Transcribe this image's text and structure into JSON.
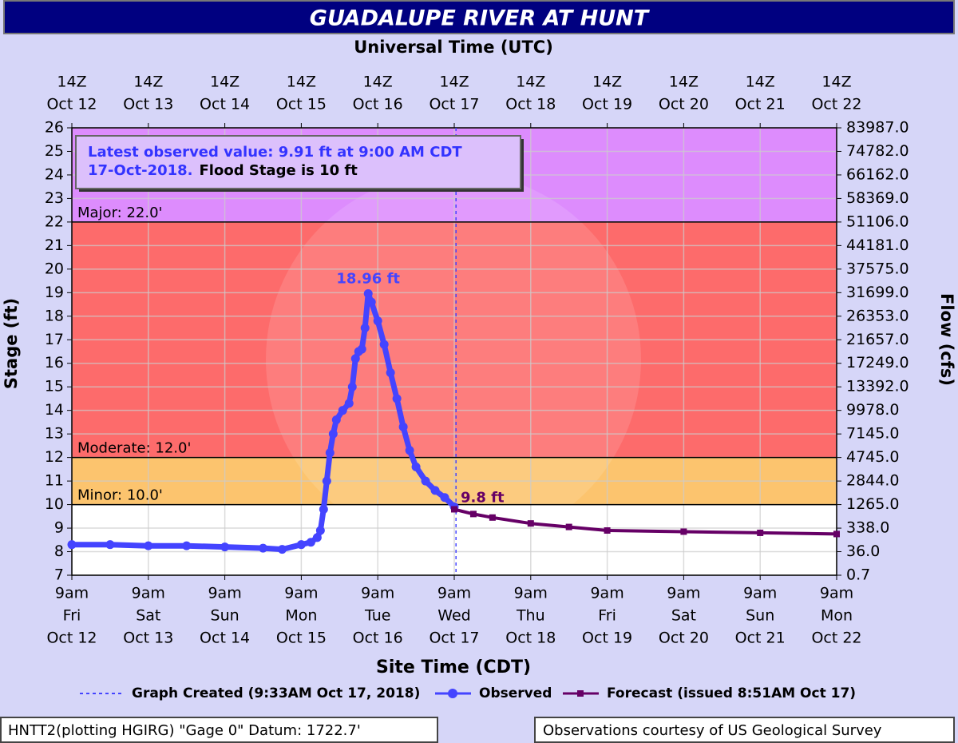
{
  "chart_data": {
    "type": "line",
    "title": "GUADALUPE RIVER AT HUNT",
    "x2_title": "Universal Time (UTC)",
    "x_title": "Site Time (CDT)",
    "y_title": "Stage (ft)",
    "y2_title": "Flow (cfs)",
    "xlim": [
      "Oct 12 9am",
      "Oct 22 9am"
    ],
    "xticks": [
      {
        "value": "Oct 12 9am",
        "label": [
          "9am",
          "Fri",
          "Oct 12"
        ]
      },
      {
        "value": "Oct 13 9am",
        "label": [
          "9am",
          "Sat",
          "Oct 13"
        ]
      },
      {
        "value": "Oct 14 9am",
        "label": [
          "9am",
          "Sun",
          "Oct 14"
        ]
      },
      {
        "value": "Oct 15 9am",
        "label": [
          "9am",
          "Mon",
          "Oct 15"
        ]
      },
      {
        "value": "Oct 16 9am",
        "label": [
          "9am",
          "Tue",
          "Oct 16"
        ]
      },
      {
        "value": "Oct 17 9am",
        "label": [
          "9am",
          "Wed",
          "Oct 17"
        ]
      },
      {
        "value": "Oct 18 9am",
        "label": [
          "9am",
          "Thu",
          "Oct 18"
        ]
      },
      {
        "value": "Oct 19 9am",
        "label": [
          "9am",
          "Fri",
          "Oct 19"
        ]
      },
      {
        "value": "Oct 20 9am",
        "label": [
          "9am",
          "Sat",
          "Oct 20"
        ]
      },
      {
        "value": "Oct 21 9am",
        "label": [
          "9am",
          "Sun",
          "Oct 21"
        ]
      },
      {
        "value": "Oct 22 9am",
        "label": [
          "9am",
          "Mon",
          "Oct 22"
        ]
      }
    ],
    "x2ticks": [
      {
        "value": "Oct 12 14Z",
        "label": [
          "14Z",
          "Oct 12"
        ]
      },
      {
        "value": "Oct 13 14Z",
        "label": [
          "14Z",
          "Oct 13"
        ]
      },
      {
        "value": "Oct 14 14Z",
        "label": [
          "14Z",
          "Oct 14"
        ]
      },
      {
        "value": "Oct 15 14Z",
        "label": [
          "14Z",
          "Oct 15"
        ]
      },
      {
        "value": "Oct 16 14Z",
        "label": [
          "14Z",
          "Oct 16"
        ]
      },
      {
        "value": "Oct 17 14Z",
        "label": [
          "14Z",
          "Oct 17"
        ]
      },
      {
        "value": "Oct 18 14Z",
        "label": [
          "14Z",
          "Oct 18"
        ]
      },
      {
        "value": "Oct 19 14Z",
        "label": [
          "14Z",
          "Oct 19"
        ]
      },
      {
        "value": "Oct 20 14Z",
        "label": [
          "14Z",
          "Oct 20"
        ]
      },
      {
        "value": "Oct 21 14Z",
        "label": [
          "14Z",
          "Oct 21"
        ]
      },
      {
        "value": "Oct 22 14Z",
        "label": [
          "14Z",
          "Oct 22"
        ]
      }
    ],
    "ylim": [
      7,
      26
    ],
    "yticks": [
      7,
      8,
      9,
      10,
      11,
      12,
      13,
      14,
      15,
      16,
      17,
      18,
      19,
      20,
      21,
      22,
      23,
      24,
      25,
      26
    ],
    "y2ticks": [
      0.7,
      {
        "value": 36,
        "label": "36.0"
      },
      {
        "value": 338,
        "label": "338.0"
      },
      {
        "value": 1265,
        "label": "1265.0"
      },
      {
        "value": 2844,
        "label": "2844.0"
      },
      {
        "value": 4745,
        "label": "4745.0"
      },
      {
        "value": 7145,
        "label": "7145.0"
      },
      {
        "value": 9978,
        "label": "9978.0"
      },
      {
        "value": 13392,
        "label": "13392.0"
      },
      {
        "value": 17249,
        "label": "17249.0"
      },
      {
        "value": 21657,
        "label": "21657.0"
      },
      {
        "value": 26353,
        "label": "26353.0"
      },
      {
        "value": 31699,
        "label": "31699.0"
      },
      {
        "value": 37575,
        "label": "37575.0"
      },
      {
        "value": 44181,
        "label": "44181.0"
      },
      {
        "value": 51106,
        "label": "51106.0"
      },
      {
        "value": 58369,
        "label": "58369.0"
      },
      {
        "value": 66162,
        "label": "66162.0"
      },
      {
        "value": 74782,
        "label": "74782.0"
      },
      {
        "value": 83987,
        "label": "83987.0"
      }
    ],
    "grid": true,
    "flood_categories": [
      {
        "label": "Minor: 10.0'",
        "stage": 10,
        "color": "#fcc46e"
      },
      {
        "label": "Moderate: 12.0'",
        "stage": 12,
        "color": "#fd6b6b"
      },
      {
        "label": "Major: 22.0'",
        "stage": 22,
        "color": "#dd8cfd"
      }
    ],
    "markers": [
      {
        "name": "Graph Created (9:33AM Oct 17, 2018)",
        "x": "Oct 17 9:33am",
        "color": "#4444ff"
      }
    ],
    "series": [
      {
        "name": "Observed",
        "color": "#4444ff",
        "marker": "circle",
        "x": [
          "Oct 12 9am",
          "Oct 12 9pm",
          "Oct 13 9am",
          "Oct 13 9pm",
          "Oct 14 9am",
          "Oct 14 9pm",
          "Oct 15 3am",
          "Oct 15 9am",
          "Oct 15 12pm",
          "Oct 15 2pm",
          "Oct 15 3pm",
          "Oct 15 4pm",
          "Oct 15 5pm",
          "Oct 15 6pm",
          "Oct 15 7pm",
          "Oct 15 8pm",
          "Oct 15 10pm",
          "Oct 16 12am",
          "Oct 16 1am",
          "Oct 16 2am",
          "Oct 16 3am",
          "Oct 16 4am",
          "Oct 16 5am",
          "Oct 16 6am",
          "Oct 16 7am",
          "Oct 16 9am",
          "Oct 16 11am",
          "Oct 16 1pm",
          "Oct 16 3pm",
          "Oct 16 5pm",
          "Oct 16 7pm",
          "Oct 16 9pm",
          "Oct 17 12am",
          "Oct 17 3am",
          "Oct 17 6am",
          "Oct 17 9am"
        ],
        "values": [
          8.3,
          8.3,
          8.25,
          8.25,
          8.2,
          8.15,
          8.1,
          8.3,
          8.4,
          8.6,
          8.9,
          9.8,
          11.0,
          12.2,
          13.0,
          13.6,
          14.0,
          14.3,
          15.0,
          16.2,
          16.5,
          16.6,
          17.5,
          18.96,
          18.6,
          17.8,
          16.8,
          15.6,
          14.5,
          13.3,
          12.3,
          11.6,
          11.0,
          10.6,
          10.3,
          9.91
        ],
        "value_labels": [
          null,
          null,
          null,
          null,
          null,
          null,
          null,
          null,
          null,
          null,
          null,
          null,
          null,
          null,
          null,
          null,
          null,
          null,
          null,
          null,
          null,
          null,
          null,
          "18.96 ft",
          null,
          null,
          null,
          null,
          null,
          null,
          null,
          null,
          null,
          null,
          null,
          null
        ]
      },
      {
        "name": "Forecast (issued 8:51AM Oct 17)",
        "color": "#660066",
        "marker": "square",
        "x": [
          "Oct 17 9am",
          "Oct 17 3pm",
          "Oct 17 9pm",
          "Oct 18 9am",
          "Oct 18 9pm",
          "Oct 19 9am",
          "Oct 20 9am",
          "Oct 21 9am",
          "Oct 22 9am"
        ],
        "values": [
          9.8,
          9.6,
          9.45,
          9.2,
          9.05,
          8.9,
          8.85,
          8.8,
          8.75
        ],
        "value_labels": [
          "9.8 ft",
          null,
          null,
          null,
          null,
          null,
          null,
          null,
          null
        ]
      }
    ],
    "annotation": {
      "observed": [
        "Latest observed value: 9.91 ft at 9:00 AM CDT",
        "17-Oct-2018."
      ],
      "flood_stage": "Flood Stage is 10 ft"
    }
  },
  "footer": {
    "left": "HNTT2(plotting HGIRG) \"Gage 0\" Datum: 1722.7'",
    "right": "Observations courtesy of US Geological Survey"
  }
}
